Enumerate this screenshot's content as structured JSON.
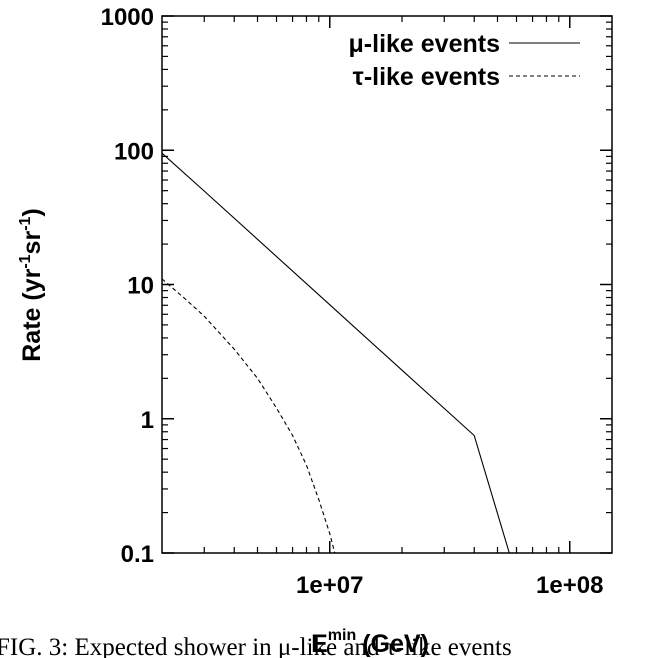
{
  "chart_data": {
    "type": "line",
    "xlabel_base": "E",
    "xlabel_sup": "min",
    "xlabel_unit": "(GeV)",
    "ylabel": [
      "Rate (yr",
      "-1",
      "sr",
      "-1",
      ")"
    ],
    "x_scale": "log",
    "y_scale": "log",
    "xlim": [
      2000000,
      150000000
    ],
    "ylim": [
      0.1,
      1000
    ],
    "x_ticks": [
      {
        "value": 10000000,
        "label": "1e+07"
      },
      {
        "value": 100000000,
        "label": "1e+08"
      }
    ],
    "y_ticks": [
      {
        "value": 0.1,
        "label": "0.1"
      },
      {
        "value": 1,
        "label": "1"
      },
      {
        "value": 10,
        "label": "10"
      },
      {
        "value": 100,
        "label": "100"
      },
      {
        "value": 1000,
        "label": "1000"
      }
    ],
    "grid": false,
    "legend_position": "top-right",
    "series": [
      {
        "name": "μ-like events",
        "style": "solid",
        "x": [
          2000000,
          3000000,
          5000000,
          10000000,
          20000000,
          40000000,
          56000000
        ],
        "y": [
          95,
          49.6,
          21.7,
          7.07,
          2.3,
          0.75,
          0.1
        ]
      },
      {
        "name": "τ-like events",
        "style": "dashed",
        "x": [
          2000000,
          2500000,
          3000000,
          4000000,
          5000000,
          6000000,
          7000000,
          8000000,
          9000000,
          10000000,
          10500000
        ],
        "y": [
          11,
          7.8,
          5.8,
          3.3,
          2.0,
          1.2,
          0.75,
          0.45,
          0.25,
          0.14,
          0.1
        ]
      }
    ]
  },
  "caption": "FIG. 3:  Expected shower in μ-like and τ-like events"
}
